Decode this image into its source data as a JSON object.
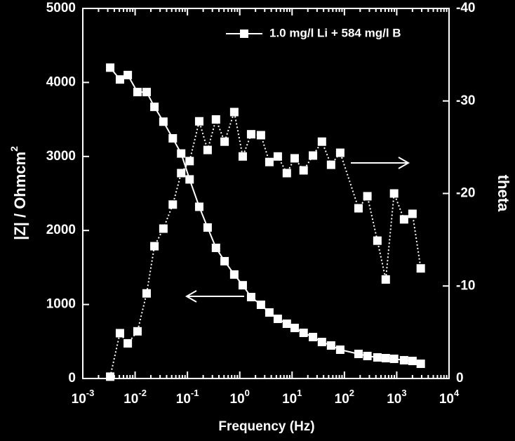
{
  "chart_data": {
    "type": "line",
    "x_label": "Frequency (Hz)",
    "y_label": "|Z| / Ohmcm",
    "y_label_sup": "2",
    "y2_label": "theta",
    "x": [
      0.00334,
      0.00513,
      0.00724,
      0.0111,
      0.0166,
      0.0234,
      0.0347,
      0.0525,
      0.0759,
      0.11,
      0.168,
      0.243,
      0.351,
      0.513,
      0.785,
      1.14,
      1.65,
      2.54,
      3.68,
      5.33,
      7.94,
      11.2,
      16.6,
      25.1,
      37.2,
      55.6,
      83.2,
      186,
      275,
      427,
      617,
      891,
      1380,
      2000,
      2880
    ],
    "series": [
      {
        "name": "1.0 mg/l Li + 584 mg/l B",
        "color": "#ffffff",
        "dash": false,
        "values": [
          4200,
          4040,
          4100,
          3870,
          3870,
          3670,
          3470,
          3245,
          3040,
          2690,
          2320,
          2040,
          1765,
          1585,
          1405,
          1260,
          1100,
          996,
          892,
          806,
          740,
          683,
          617,
          560,
          493,
          446,
          389,
          332,
          304,
          285,
          275,
          266,
          247,
          237,
          199
        ]
      },
      {
        "color": "#ffffff",
        "dash": true,
        "axis": "y2",
        "values": [
          -0.2,
          -4.9,
          -3.8,
          -5.1,
          -9.2,
          -14.3,
          -16.2,
          -18.8,
          -22.2,
          -23.5,
          -27.8,
          -24.7,
          -28.0,
          -25.6,
          -28.8,
          -24.0,
          -26.4,
          -26.3,
          -23.4,
          -24.0,
          -22.2,
          -23.8,
          -22.5,
          -24.1,
          -25.6,
          -23.1,
          -24.4,
          -18.4,
          -19.7,
          -14.9,
          -10.7,
          -20.0,
          -17.2,
          -17.8,
          -11.9
        ]
      }
    ],
    "log_x": true,
    "xlim": [
      0.001,
      10000
    ],
    "xticks": [
      {
        "value": 0.001,
        "label": "10",
        "exponent": "-3"
      },
      {
        "value": 0.01,
        "label": "10",
        "exponent": "-2"
      },
      {
        "value": 0.1,
        "label": "10",
        "exponent": "-1"
      },
      {
        "value": 1,
        "label": "10",
        "exponent": "0"
      },
      {
        "value": 10,
        "label": "10",
        "exponent": "1"
      },
      {
        "value": 100,
        "label": "10",
        "exponent": "2"
      },
      {
        "value": 1000,
        "label": "10",
        "exponent": "3"
      },
      {
        "value": 10000,
        "label": "10",
        "exponent": "4"
      }
    ],
    "ylim": [
      0,
      5000
    ],
    "yticks": [
      0,
      1000,
      2000,
      3000,
      4000,
      5000
    ],
    "y2lim": [
      0,
      -40
    ],
    "y2ticks": [
      0,
      -10,
      -20,
      -30,
      -40
    ],
    "legend": "upper right"
  }
}
